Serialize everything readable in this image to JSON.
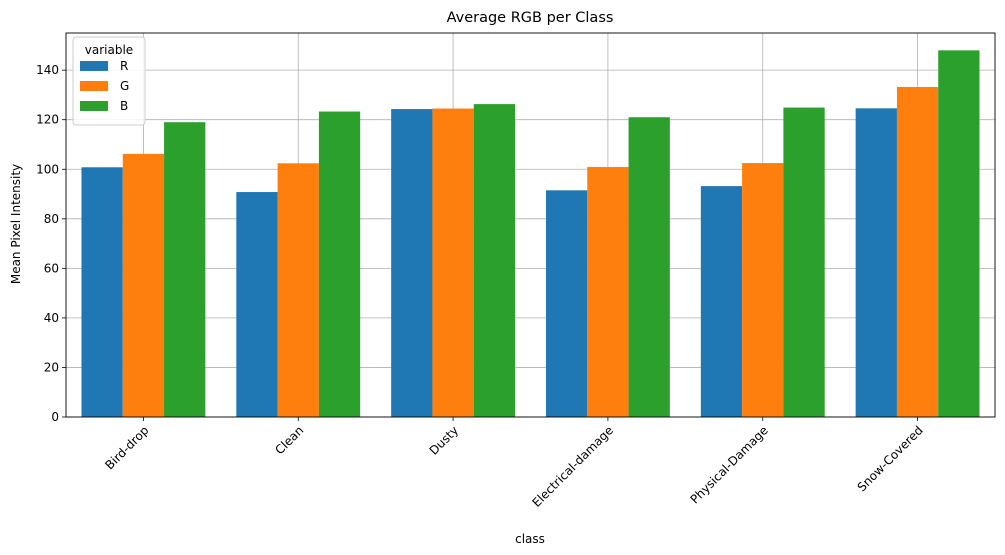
{
  "chart_data": {
    "type": "bar",
    "title": "Average RGB per Class",
    "xlabel": "class",
    "ylabel": "Mean Pixel Intensity",
    "categories": [
      "Bird-drop",
      "Clean",
      "Dusty",
      "Electrical-damage",
      "Physical-Damage",
      "Snow-Covered"
    ],
    "series": [
      {
        "name": "R",
        "color": "#1f77b4",
        "values": [
          100.8,
          90.8,
          124.3,
          91.5,
          93.2,
          124.6
        ]
      },
      {
        "name": "G",
        "color": "#ff7f0e",
        "values": [
          106.2,
          102.4,
          124.5,
          100.9,
          102.5,
          133.2
        ]
      },
      {
        "name": "B",
        "color": "#2ca02c",
        "values": [
          119.0,
          123.3,
          126.3,
          121.0,
          124.9,
          148.0
        ]
      }
    ],
    "ylim": [
      0,
      155
    ],
    "yticks": [
      0,
      20,
      40,
      60,
      80,
      100,
      120,
      140
    ],
    "grid": true,
    "legend": {
      "title": "variable",
      "placement": "top-left"
    }
  }
}
